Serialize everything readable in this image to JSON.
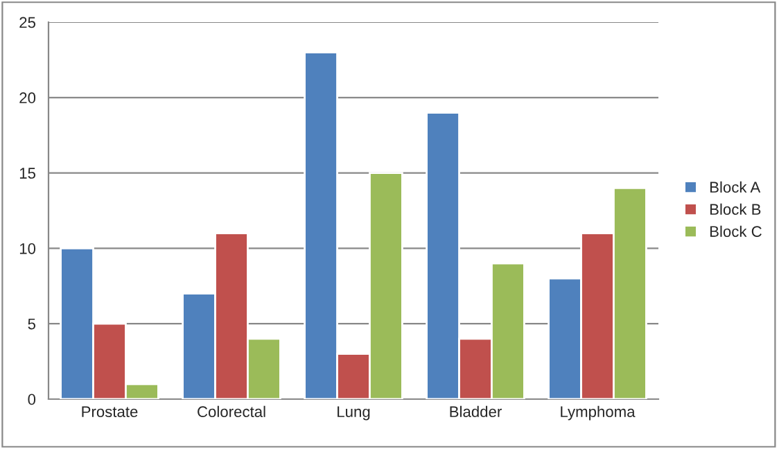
{
  "chart_data": {
    "type": "bar",
    "categories": [
      "Prostate",
      "Colorectal",
      "Lung",
      "Bladder",
      "Lymphoma"
    ],
    "series": [
      {
        "name": "Block A",
        "color": "#4f81bd",
        "values": [
          10,
          7,
          23,
          19,
          8
        ]
      },
      {
        "name": "Block B",
        "color": "#c0504d",
        "values": [
          5,
          11,
          3,
          4,
          11
        ]
      },
      {
        "name": "Block C",
        "color": "#9bbb59",
        "values": [
          1,
          4,
          15,
          9,
          14
        ]
      }
    ],
    "ylim": [
      0,
      25
    ],
    "yticks": [
      0,
      5,
      10,
      15,
      20,
      25
    ],
    "grid": "y",
    "legend": "right"
  }
}
